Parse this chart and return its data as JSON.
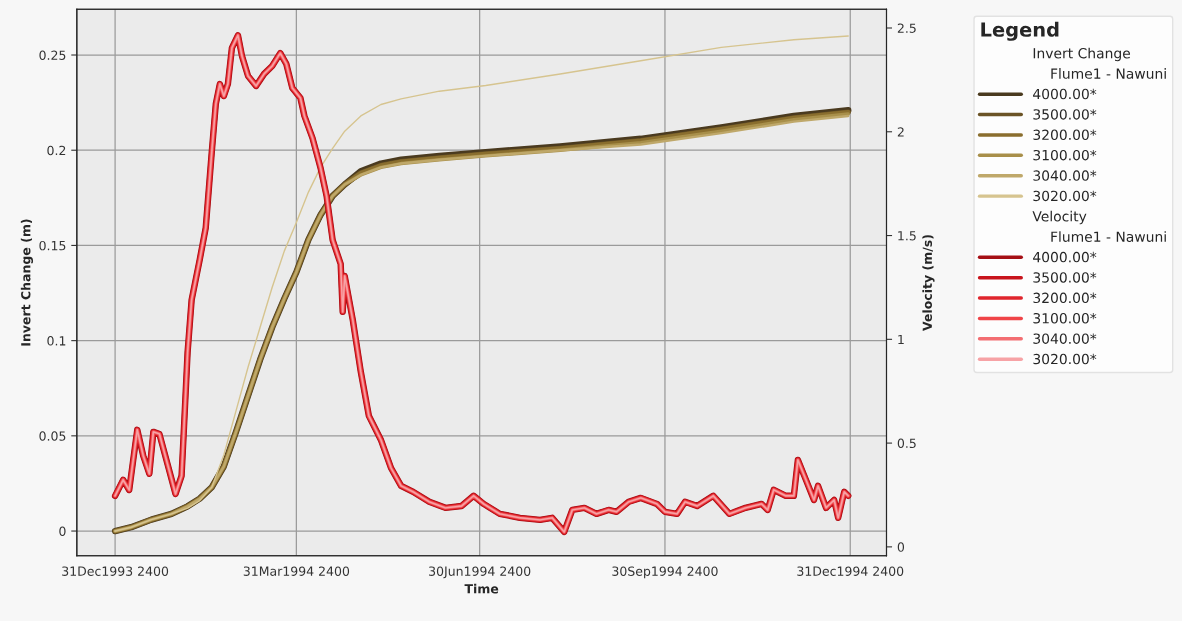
{
  "chart_data": {
    "type": "line",
    "xlabel": "Time",
    "ylabel": "Invert Change (m)",
    "y2label": "Velocity (m/s)",
    "legend_title": "Legend",
    "annotations": [
      "Invert Change",
      "Flume1 - Nawuni",
      "Velocity",
      "Flume1 - Nawuni"
    ],
    "xlim": [
      "1993-12-13",
      "1995-01-19"
    ],
    "xticks": [
      {
        "value": "1993-12-31T23:59",
        "label": "31Dec1993 2400"
      },
      {
        "value": "1994-03-31T23:59",
        "label": "31Mar1994 2400"
      },
      {
        "value": "1994-06-30T23:59",
        "label": "30Jun1994 2400"
      },
      {
        "value": "1994-09-30T23:59",
        "label": "30Sep1994 2400"
      },
      {
        "value": "1994-12-31T23:59",
        "label": "31Dec1994 2400"
      }
    ],
    "ylim": [
      -0.013,
      0.274
    ],
    "yticks": [
      0,
      0.05,
      0.1,
      0.15,
      0.2,
      0.25
    ],
    "y2lim": [
      -0.043,
      2.59
    ],
    "y2ticks": [
      0,
      0.5,
      1,
      1.5,
      2,
      2.5
    ],
    "grid": true,
    "legend": "right",
    "x": [
      "1994-01-01",
      "1994-01-09",
      "1994-01-19",
      "1994-01-29",
      "1994-02-06",
      "1994-02-12",
      "1994-02-18",
      "1994-02-24",
      "1994-03-02",
      "1994-03-08",
      "1994-03-14",
      "1994-03-20",
      "1994-03-26",
      "1994-04-01",
      "1994-04-07",
      "1994-04-13",
      "1994-04-19",
      "1994-04-25",
      "1994-05-03",
      "1994-05-13",
      "1994-05-23",
      "1994-06-11",
      "1994-07-04",
      "1994-08-10",
      "1994-09-19",
      "1994-10-29",
      "1994-12-04",
      "1994-12-31"
    ],
    "series": [
      {
        "name": "4000.00*",
        "color": "#4a3a1f",
        "values": [
          0,
          0.002,
          0.006,
          0.009,
          0.013,
          0.017,
          0.023,
          0.034,
          0.052,
          0.071,
          0.09,
          0.107,
          0.122,
          0.136,
          0.153,
          0.166,
          0.176,
          0.182,
          0.189,
          0.193,
          0.195,
          0.197,
          0.199,
          0.202,
          0.206,
          0.212,
          0.218,
          0.221
        ]
      },
      {
        "name": "3500.00*",
        "color": "#6b5426",
        "values": [
          0,
          0.002,
          0.006,
          0.009,
          0.013,
          0.017,
          0.023,
          0.034,
          0.052,
          0.071,
          0.09,
          0.107,
          0.122,
          0.136,
          0.153,
          0.166,
          0.176,
          0.182,
          0.188,
          0.192,
          0.194,
          0.196,
          0.198,
          0.201,
          0.205,
          0.211,
          0.217,
          0.22
        ]
      },
      {
        "name": "3200.00*",
        "color": "#8a6e2e",
        "values": [
          0,
          0.002,
          0.006,
          0.009,
          0.013,
          0.017,
          0.023,
          0.034,
          0.052,
          0.071,
          0.09,
          0.107,
          0.122,
          0.136,
          0.153,
          0.166,
          0.176,
          0.182,
          0.188,
          0.192,
          0.194,
          0.196,
          0.198,
          0.201,
          0.205,
          0.211,
          0.217,
          0.22
        ]
      },
      {
        "name": "3100.00*",
        "color": "#a88f4a",
        "values": [
          0,
          0.002,
          0.006,
          0.009,
          0.013,
          0.017,
          0.023,
          0.034,
          0.052,
          0.071,
          0.09,
          0.107,
          0.122,
          0.136,
          0.153,
          0.166,
          0.176,
          0.182,
          0.187,
          0.191,
          0.193,
          0.195,
          0.197,
          0.2,
          0.204,
          0.21,
          0.216,
          0.219
        ]
      },
      {
        "name": "3040.00*",
        "color": "#bfa86a",
        "values": [
          0,
          0.002,
          0.006,
          0.009,
          0.013,
          0.017,
          0.023,
          0.034,
          0.052,
          0.071,
          0.09,
          0.107,
          0.122,
          0.136,
          0.153,
          0.166,
          0.176,
          0.182,
          0.187,
          0.191,
          0.193,
          0.195,
          0.197,
          0.2,
          0.203,
          0.209,
          0.215,
          0.218
        ]
      },
      {
        "name": "3020.00*",
        "color": "#d6c48f",
        "values": [
          0,
          0.002,
          0.006,
          0.009,
          0.012,
          0.016,
          0.023,
          0.04,
          0.063,
          0.086,
          0.107,
          0.128,
          0.147,
          0.162,
          0.178,
          0.191,
          0.201,
          0.21,
          0.218,
          0.224,
          0.227,
          0.231,
          0.234,
          0.24,
          0.247,
          0.254,
          0.258,
          0.26
        ]
      },
      {
        "name": "4000.00*",
        "color": "#a50f15",
        "axis": "y2",
        "x": [
          "1994-01-01",
          "1994-01-05",
          "1994-01-08",
          "1994-01-12",
          "1994-01-15",
          "1994-01-18",
          "1994-01-20",
          "1994-01-23",
          "1994-01-27",
          "1994-01-31",
          "1994-02-03",
          "1994-02-04",
          "1994-02-06",
          "1994-02-08",
          "1994-02-12",
          "1994-02-15",
          "1994-02-18",
          "1994-02-20",
          "1994-02-22",
          "1994-02-24",
          "1994-02-26",
          "1994-02-28",
          "1994-03-03",
          "1994-03-05",
          "1994-03-08",
          "1994-03-12",
          "1994-03-16",
          "1994-03-20",
          "1994-03-24",
          "1994-03-27",
          "1994-03-30",
          "1994-04-03",
          "1994-04-05",
          "1994-04-09",
          "1994-04-13",
          "1994-04-16",
          "1994-04-19",
          "1994-04-23",
          "1994-04-24",
          "1994-04-25",
          "1994-04-29",
          "1994-05-03",
          "1994-05-07",
          "1994-05-13",
          "1994-05-18",
          "1994-05-23",
          "1994-05-29",
          "1994-06-06",
          "1994-06-14",
          "1994-06-22",
          "1994-06-28",
          "1994-07-03",
          "1994-07-11",
          "1994-07-21",
          "1994-07-31",
          "1994-08-06",
          "1994-08-12",
          "1994-08-16",
          "1994-08-22",
          "1994-08-28",
          "1994-09-03",
          "1994-09-07",
          "1994-09-13",
          "1994-09-19",
          "1994-09-27",
          "1994-10-01",
          "1994-10-07",
          "1994-10-11",
          "1994-10-17",
          "1994-10-25",
          "1994-11-02",
          "1994-11-10",
          "1994-11-18",
          "1994-11-21",
          "1994-11-24",
          "1994-11-30",
          "1994-12-04",
          "1994-12-06",
          "1994-12-10",
          "1994-12-14",
          "1994-12-16",
          "1994-12-20",
          "1994-12-24",
          "1994-12-26",
          "1994-12-29",
          "1994-12-31"
        ],
        "values": [
          0.246,
          0.323,
          0.274,
          0.564,
          0.438,
          0.352,
          0.554,
          0.544,
          0.4,
          0.255,
          0.342,
          0.535,
          0.939,
          1.19,
          1.383,
          1.537,
          1.903,
          2.134,
          2.23,
          2.172,
          2.23,
          2.404,
          2.465,
          2.365,
          2.269,
          2.221,
          2.279,
          2.317,
          2.379,
          2.327,
          2.211,
          2.163,
          2.076,
          1.97,
          1.826,
          1.691,
          1.479,
          1.363,
          1.132,
          1.305,
          1.094,
          0.843,
          0.631,
          0.515,
          0.38,
          0.294,
          0.265,
          0.217,
          0.188,
          0.197,
          0.246,
          0.207,
          0.159,
          0.14,
          0.13,
          0.14,
          0.072,
          0.178,
          0.188,
          0.159,
          0.178,
          0.169,
          0.217,
          0.236,
          0.207,
          0.169,
          0.159,
          0.217,
          0.197,
          0.246,
          0.159,
          0.188,
          0.207,
          0.178,
          0.275,
          0.246,
          0.246,
          0.419,
          0.323,
          0.226,
          0.294,
          0.188,
          0.226,
          0.14,
          0.265,
          0.246
        ]
      },
      {
        "name": "3500.00*",
        "color": "#c8141c",
        "axis": "y2",
        "x": [
          "1994-01-01",
          "1994-01-05",
          "1994-01-08",
          "1994-01-12",
          "1994-01-15",
          "1994-01-18",
          "1994-01-20",
          "1994-01-23",
          "1994-01-27",
          "1994-01-31",
          "1994-02-03",
          "1994-02-04",
          "1994-02-06",
          "1994-02-08",
          "1994-02-12",
          "1994-02-15",
          "1994-02-18",
          "1994-02-20",
          "1994-02-22",
          "1994-02-24",
          "1994-02-26",
          "1994-02-28",
          "1994-03-03",
          "1994-03-05",
          "1994-03-08",
          "1994-03-12",
          "1994-03-16",
          "1994-03-20",
          "1994-03-24",
          "1994-03-27",
          "1994-03-30",
          "1994-04-03",
          "1994-04-05",
          "1994-04-09",
          "1994-04-13",
          "1994-04-16",
          "1994-04-19",
          "1994-04-23",
          "1994-04-24",
          "1994-04-25",
          "1994-04-29",
          "1994-05-03",
          "1994-05-07",
          "1994-05-13",
          "1994-05-18",
          "1994-05-23",
          "1994-05-29",
          "1994-06-06",
          "1994-06-14",
          "1994-06-22",
          "1994-06-28",
          "1994-07-03",
          "1994-07-11",
          "1994-07-21",
          "1994-07-31",
          "1994-08-06",
          "1994-08-12",
          "1994-08-16",
          "1994-08-22",
          "1994-08-28",
          "1994-09-03",
          "1994-09-07",
          "1994-09-13",
          "1994-09-19",
          "1994-09-27",
          "1994-10-01",
          "1994-10-07",
          "1994-10-11",
          "1994-10-17",
          "1994-10-25",
          "1994-11-02",
          "1994-11-10",
          "1994-11-18",
          "1994-11-21",
          "1994-11-24",
          "1994-11-30",
          "1994-12-04",
          "1994-12-06",
          "1994-12-10",
          "1994-12-14",
          "1994-12-16",
          "1994-12-20",
          "1994-12-24",
          "1994-12-26",
          "1994-12-29",
          "1994-12-31"
        ],
        "values": [
          0.246,
          0.323,
          0.274,
          0.564,
          0.438,
          0.352,
          0.554,
          0.544,
          0.4,
          0.255,
          0.342,
          0.535,
          0.939,
          1.19,
          1.383,
          1.537,
          1.903,
          2.134,
          2.23,
          2.172,
          2.23,
          2.404,
          2.465,
          2.365,
          2.269,
          2.221,
          2.279,
          2.317,
          2.379,
          2.327,
          2.211,
          2.163,
          2.076,
          1.97,
          1.826,
          1.691,
          1.479,
          1.363,
          1.132,
          1.305,
          1.094,
          0.843,
          0.631,
          0.515,
          0.38,
          0.294,
          0.265,
          0.217,
          0.188,
          0.197,
          0.246,
          0.207,
          0.159,
          0.14,
          0.13,
          0.14,
          0.072,
          0.178,
          0.188,
          0.159,
          0.178,
          0.169,
          0.217,
          0.236,
          0.207,
          0.169,
          0.159,
          0.217,
          0.197,
          0.246,
          0.159,
          0.188,
          0.207,
          0.178,
          0.275,
          0.246,
          0.246,
          0.419,
          0.323,
          0.226,
          0.294,
          0.188,
          0.226,
          0.14,
          0.265,
          0.246
        ]
      },
      {
        "name": "3200.00*",
        "color": "#e0252d",
        "axis": "y2",
        "x": [
          "1994-01-01",
          "1994-01-05",
          "1994-01-08",
          "1994-01-12",
          "1994-01-15",
          "1994-01-18",
          "1994-01-20",
          "1994-01-23",
          "1994-01-27",
          "1994-01-31",
          "1994-02-03",
          "1994-02-04",
          "1994-02-06",
          "1994-02-08",
          "1994-02-12",
          "1994-02-15",
          "1994-02-18",
          "1994-02-20",
          "1994-02-22",
          "1994-02-24",
          "1994-02-26",
          "1994-02-28",
          "1994-03-03",
          "1994-03-05",
          "1994-03-08",
          "1994-03-12",
          "1994-03-16",
          "1994-03-20",
          "1994-03-24",
          "1994-03-27",
          "1994-03-30",
          "1994-04-03",
          "1994-04-05",
          "1994-04-09",
          "1994-04-13",
          "1994-04-16",
          "1994-04-19",
          "1994-04-23",
          "1994-04-24",
          "1994-04-25",
          "1994-04-29",
          "1994-05-03",
          "1994-05-07",
          "1994-05-13",
          "1994-05-18",
          "1994-05-23",
          "1994-05-29",
          "1994-06-06",
          "1994-06-14",
          "1994-06-22",
          "1994-06-28",
          "1994-07-03",
          "1994-07-11",
          "1994-07-21",
          "1994-07-31",
          "1994-08-06",
          "1994-08-12",
          "1994-08-16",
          "1994-08-22",
          "1994-08-28",
          "1994-09-03",
          "1994-09-07",
          "1994-09-13",
          "1994-09-19",
          "1994-09-27",
          "1994-10-01",
          "1994-10-07",
          "1994-10-11",
          "1994-10-17",
          "1994-10-25",
          "1994-11-02",
          "1994-11-10",
          "1994-11-18",
          "1994-11-21",
          "1994-11-24",
          "1994-11-30",
          "1994-12-04",
          "1994-12-06",
          "1994-12-10",
          "1994-12-14",
          "1994-12-16",
          "1994-12-20",
          "1994-12-24",
          "1994-12-26",
          "1994-12-29",
          "1994-12-31"
        ],
        "values": [
          0.246,
          0.323,
          0.274,
          0.564,
          0.438,
          0.352,
          0.554,
          0.544,
          0.4,
          0.255,
          0.342,
          0.535,
          0.939,
          1.19,
          1.383,
          1.537,
          1.903,
          2.134,
          2.23,
          2.172,
          2.23,
          2.404,
          2.465,
          2.365,
          2.269,
          2.221,
          2.279,
          2.317,
          2.379,
          2.327,
          2.211,
          2.163,
          2.076,
          1.97,
          1.826,
          1.691,
          1.479,
          1.363,
          1.132,
          1.305,
          1.094,
          0.843,
          0.631,
          0.515,
          0.38,
          0.294,
          0.265,
          0.217,
          0.188,
          0.197,
          0.246,
          0.207,
          0.159,
          0.14,
          0.13,
          0.14,
          0.072,
          0.178,
          0.188,
          0.159,
          0.178,
          0.169,
          0.217,
          0.236,
          0.207,
          0.169,
          0.159,
          0.217,
          0.197,
          0.246,
          0.159,
          0.188,
          0.207,
          0.178,
          0.275,
          0.246,
          0.246,
          0.419,
          0.323,
          0.226,
          0.294,
          0.188,
          0.226,
          0.14,
          0.265,
          0.246
        ]
      },
      {
        "name": "3100.00*",
        "color": "#f04448",
        "axis": "y2",
        "x": [
          "1994-01-01",
          "1994-01-05",
          "1994-01-08",
          "1994-01-12",
          "1994-01-15",
          "1994-01-18",
          "1994-01-20",
          "1994-01-23",
          "1994-01-27",
          "1994-01-31",
          "1994-02-03",
          "1994-02-04",
          "1994-02-06",
          "1994-02-08",
          "1994-02-12",
          "1994-02-15",
          "1994-02-18",
          "1994-02-20",
          "1994-02-22",
          "1994-02-24",
          "1994-02-26",
          "1994-02-28",
          "1994-03-03",
          "1994-03-05",
          "1994-03-08",
          "1994-03-12",
          "1994-03-16",
          "1994-03-20",
          "1994-03-24",
          "1994-03-27",
          "1994-03-30",
          "1994-04-03",
          "1994-04-05",
          "1994-04-09",
          "1994-04-13",
          "1994-04-16",
          "1994-04-19",
          "1994-04-23",
          "1994-04-24",
          "1994-04-25",
          "1994-04-29",
          "1994-05-03",
          "1994-05-07",
          "1994-05-13",
          "1994-05-18",
          "1994-05-23",
          "1994-05-29",
          "1994-06-06",
          "1994-06-14",
          "1994-06-22",
          "1994-06-28",
          "1994-07-03",
          "1994-07-11",
          "1994-07-21",
          "1994-07-31",
          "1994-08-06",
          "1994-08-12",
          "1994-08-16",
          "1994-08-22",
          "1994-08-28",
          "1994-09-03",
          "1994-09-07",
          "1994-09-13",
          "1994-09-19",
          "1994-09-27",
          "1994-10-01",
          "1994-10-07",
          "1994-10-11",
          "1994-10-17",
          "1994-10-25",
          "1994-11-02",
          "1994-11-10",
          "1994-11-18",
          "1994-11-21",
          "1994-11-24",
          "1994-11-30",
          "1994-12-04",
          "1994-12-06",
          "1994-12-10",
          "1994-12-14",
          "1994-12-16",
          "1994-12-20",
          "1994-12-24",
          "1994-12-26",
          "1994-12-29",
          "1994-12-31"
        ],
        "values": [
          0.246,
          0.323,
          0.274,
          0.564,
          0.438,
          0.352,
          0.554,
          0.544,
          0.4,
          0.255,
          0.342,
          0.535,
          0.939,
          1.19,
          1.383,
          1.537,
          1.903,
          2.134,
          2.23,
          2.172,
          2.23,
          2.404,
          2.465,
          2.365,
          2.269,
          2.221,
          2.279,
          2.317,
          2.379,
          2.327,
          2.211,
          2.163,
          2.076,
          1.97,
          1.826,
          1.691,
          1.479,
          1.363,
          1.132,
          1.305,
          1.094,
          0.843,
          0.631,
          0.515,
          0.38,
          0.294,
          0.265,
          0.217,
          0.188,
          0.197,
          0.246,
          0.207,
          0.159,
          0.14,
          0.13,
          0.14,
          0.072,
          0.178,
          0.188,
          0.159,
          0.178,
          0.169,
          0.217,
          0.236,
          0.207,
          0.169,
          0.159,
          0.217,
          0.197,
          0.246,
          0.159,
          0.188,
          0.207,
          0.178,
          0.275,
          0.246,
          0.246,
          0.419,
          0.323,
          0.226,
          0.294,
          0.188,
          0.226,
          0.14,
          0.265,
          0.246
        ]
      },
      {
        "name": "3040.00*",
        "color": "#f36e72",
        "axis": "y2",
        "x": [
          "1994-01-01",
          "1994-01-05",
          "1994-01-08",
          "1994-01-12",
          "1994-01-15",
          "1994-01-18",
          "1994-01-20",
          "1994-01-23",
          "1994-01-27",
          "1994-01-31",
          "1994-02-03",
          "1994-02-04",
          "1994-02-06",
          "1994-02-08",
          "1994-02-12",
          "1994-02-15",
          "1994-02-18",
          "1994-02-20",
          "1994-02-22",
          "1994-02-24",
          "1994-02-26",
          "1994-02-28",
          "1994-03-03",
          "1994-03-05",
          "1994-03-08",
          "1994-03-12",
          "1994-03-16",
          "1994-03-20",
          "1994-03-24",
          "1994-03-27",
          "1994-03-30",
          "1994-04-03",
          "1994-04-05",
          "1994-04-09",
          "1994-04-13",
          "1994-04-16",
          "1994-04-19",
          "1994-04-23",
          "1994-04-24",
          "1994-04-25",
          "1994-04-29",
          "1994-05-03",
          "1994-05-07",
          "1994-05-13",
          "1994-05-18",
          "1994-05-23",
          "1994-05-29",
          "1994-06-06",
          "1994-06-14",
          "1994-06-22",
          "1994-06-28",
          "1994-07-03",
          "1994-07-11",
          "1994-07-21",
          "1994-07-31",
          "1994-08-06",
          "1994-08-12",
          "1994-08-16",
          "1994-08-22",
          "1994-08-28",
          "1994-09-03",
          "1994-09-07",
          "1994-09-13",
          "1994-09-19",
          "1994-09-27",
          "1994-10-01",
          "1994-10-07",
          "1994-10-11",
          "1994-10-17",
          "1994-10-25",
          "1994-11-02",
          "1994-11-10",
          "1994-11-18",
          "1994-11-21",
          "1994-11-24",
          "1994-11-30",
          "1994-12-04",
          "1994-12-06",
          "1994-12-10",
          "1994-12-14",
          "1994-12-16",
          "1994-12-20",
          "1994-12-24",
          "1994-12-26",
          "1994-12-29",
          "1994-12-31"
        ],
        "values": [
          0.246,
          0.323,
          0.274,
          0.564,
          0.438,
          0.352,
          0.554,
          0.544,
          0.4,
          0.255,
          0.342,
          0.535,
          0.939,
          1.19,
          1.383,
          1.537,
          1.903,
          2.134,
          2.23,
          2.172,
          2.23,
          2.404,
          2.465,
          2.365,
          2.269,
          2.221,
          2.279,
          2.317,
          2.379,
          2.327,
          2.211,
          2.163,
          2.076,
          1.97,
          1.826,
          1.691,
          1.479,
          1.363,
          1.132,
          1.305,
          1.094,
          0.843,
          0.631,
          0.515,
          0.38,
          0.294,
          0.265,
          0.217,
          0.188,
          0.197,
          0.246,
          0.207,
          0.159,
          0.14,
          0.13,
          0.14,
          0.072,
          0.178,
          0.188,
          0.159,
          0.178,
          0.169,
          0.217,
          0.236,
          0.207,
          0.169,
          0.159,
          0.217,
          0.197,
          0.246,
          0.159,
          0.188,
          0.207,
          0.178,
          0.275,
          0.246,
          0.246,
          0.419,
          0.323,
          0.226,
          0.294,
          0.188,
          0.226,
          0.14,
          0.265,
          0.246
        ]
      },
      {
        "name": "3020.00*",
        "color": "#f7a3a6",
        "axis": "y2",
        "x": [
          "1994-01-01",
          "1994-01-05",
          "1994-01-08",
          "1994-01-12",
          "1994-01-15",
          "1994-01-18",
          "1994-01-20",
          "1994-01-23",
          "1994-01-27",
          "1994-01-31",
          "1994-02-03",
          "1994-02-04",
          "1994-02-06",
          "1994-02-08",
          "1994-02-12",
          "1994-02-15",
          "1994-02-18",
          "1994-02-20",
          "1994-02-22",
          "1994-02-24",
          "1994-02-26",
          "1994-02-28",
          "1994-03-03",
          "1994-03-05",
          "1994-03-08",
          "1994-03-12",
          "1994-03-16",
          "1994-03-20",
          "1994-03-24",
          "1994-03-27",
          "1994-03-30",
          "1994-04-03",
          "1994-04-05",
          "1994-04-09",
          "1994-04-13",
          "1994-04-16",
          "1994-04-19",
          "1994-04-23",
          "1994-04-24",
          "1994-04-25",
          "1994-04-29",
          "1994-05-03",
          "1994-05-07",
          "1994-05-13",
          "1994-05-18",
          "1994-05-23",
          "1994-05-29",
          "1994-06-06",
          "1994-06-14",
          "1994-06-22",
          "1994-06-28",
          "1994-07-03",
          "1994-07-11",
          "1994-07-21",
          "1994-07-31",
          "1994-08-06",
          "1994-08-12",
          "1994-08-16",
          "1994-08-22",
          "1994-08-28",
          "1994-09-03",
          "1994-09-07",
          "1994-09-13",
          "1994-09-19",
          "1994-09-27",
          "1994-10-01",
          "1994-10-07",
          "1994-10-11",
          "1994-10-17",
          "1994-10-25",
          "1994-11-02",
          "1994-11-10",
          "1994-11-18",
          "1994-11-21",
          "1994-11-24",
          "1994-11-30",
          "1994-12-04",
          "1994-12-06",
          "1994-12-10",
          "1994-12-14",
          "1994-12-16",
          "1994-12-20",
          "1994-12-24",
          "1994-12-26",
          "1994-12-29",
          "1994-12-31"
        ],
        "values": [
          0.246,
          0.323,
          0.274,
          0.564,
          0.438,
          0.352,
          0.554,
          0.544,
          0.4,
          0.255,
          0.342,
          0.535,
          0.939,
          1.19,
          1.383,
          1.537,
          1.903,
          2.134,
          2.23,
          2.172,
          2.23,
          2.404,
          2.465,
          2.365,
          2.269,
          2.221,
          2.279,
          2.317,
          2.379,
          2.327,
          2.211,
          2.163,
          2.076,
          1.97,
          1.826,
          1.691,
          1.479,
          1.363,
          1.132,
          1.305,
          1.094,
          0.843,
          0.631,
          0.515,
          0.38,
          0.294,
          0.265,
          0.217,
          0.188,
          0.197,
          0.246,
          0.207,
          0.159,
          0.14,
          0.13,
          0.14,
          0.072,
          0.178,
          0.188,
          0.159,
          0.178,
          0.169,
          0.217,
          0.236,
          0.207,
          0.169,
          0.159,
          0.217,
          0.197,
          0.246,
          0.159,
          0.188,
          0.207,
          0.178,
          0.275,
          0.246,
          0.246,
          0.419,
          0.323,
          0.226,
          0.294,
          0.188,
          0.226,
          0.14,
          0.265,
          0.246
        ]
      }
    ]
  }
}
